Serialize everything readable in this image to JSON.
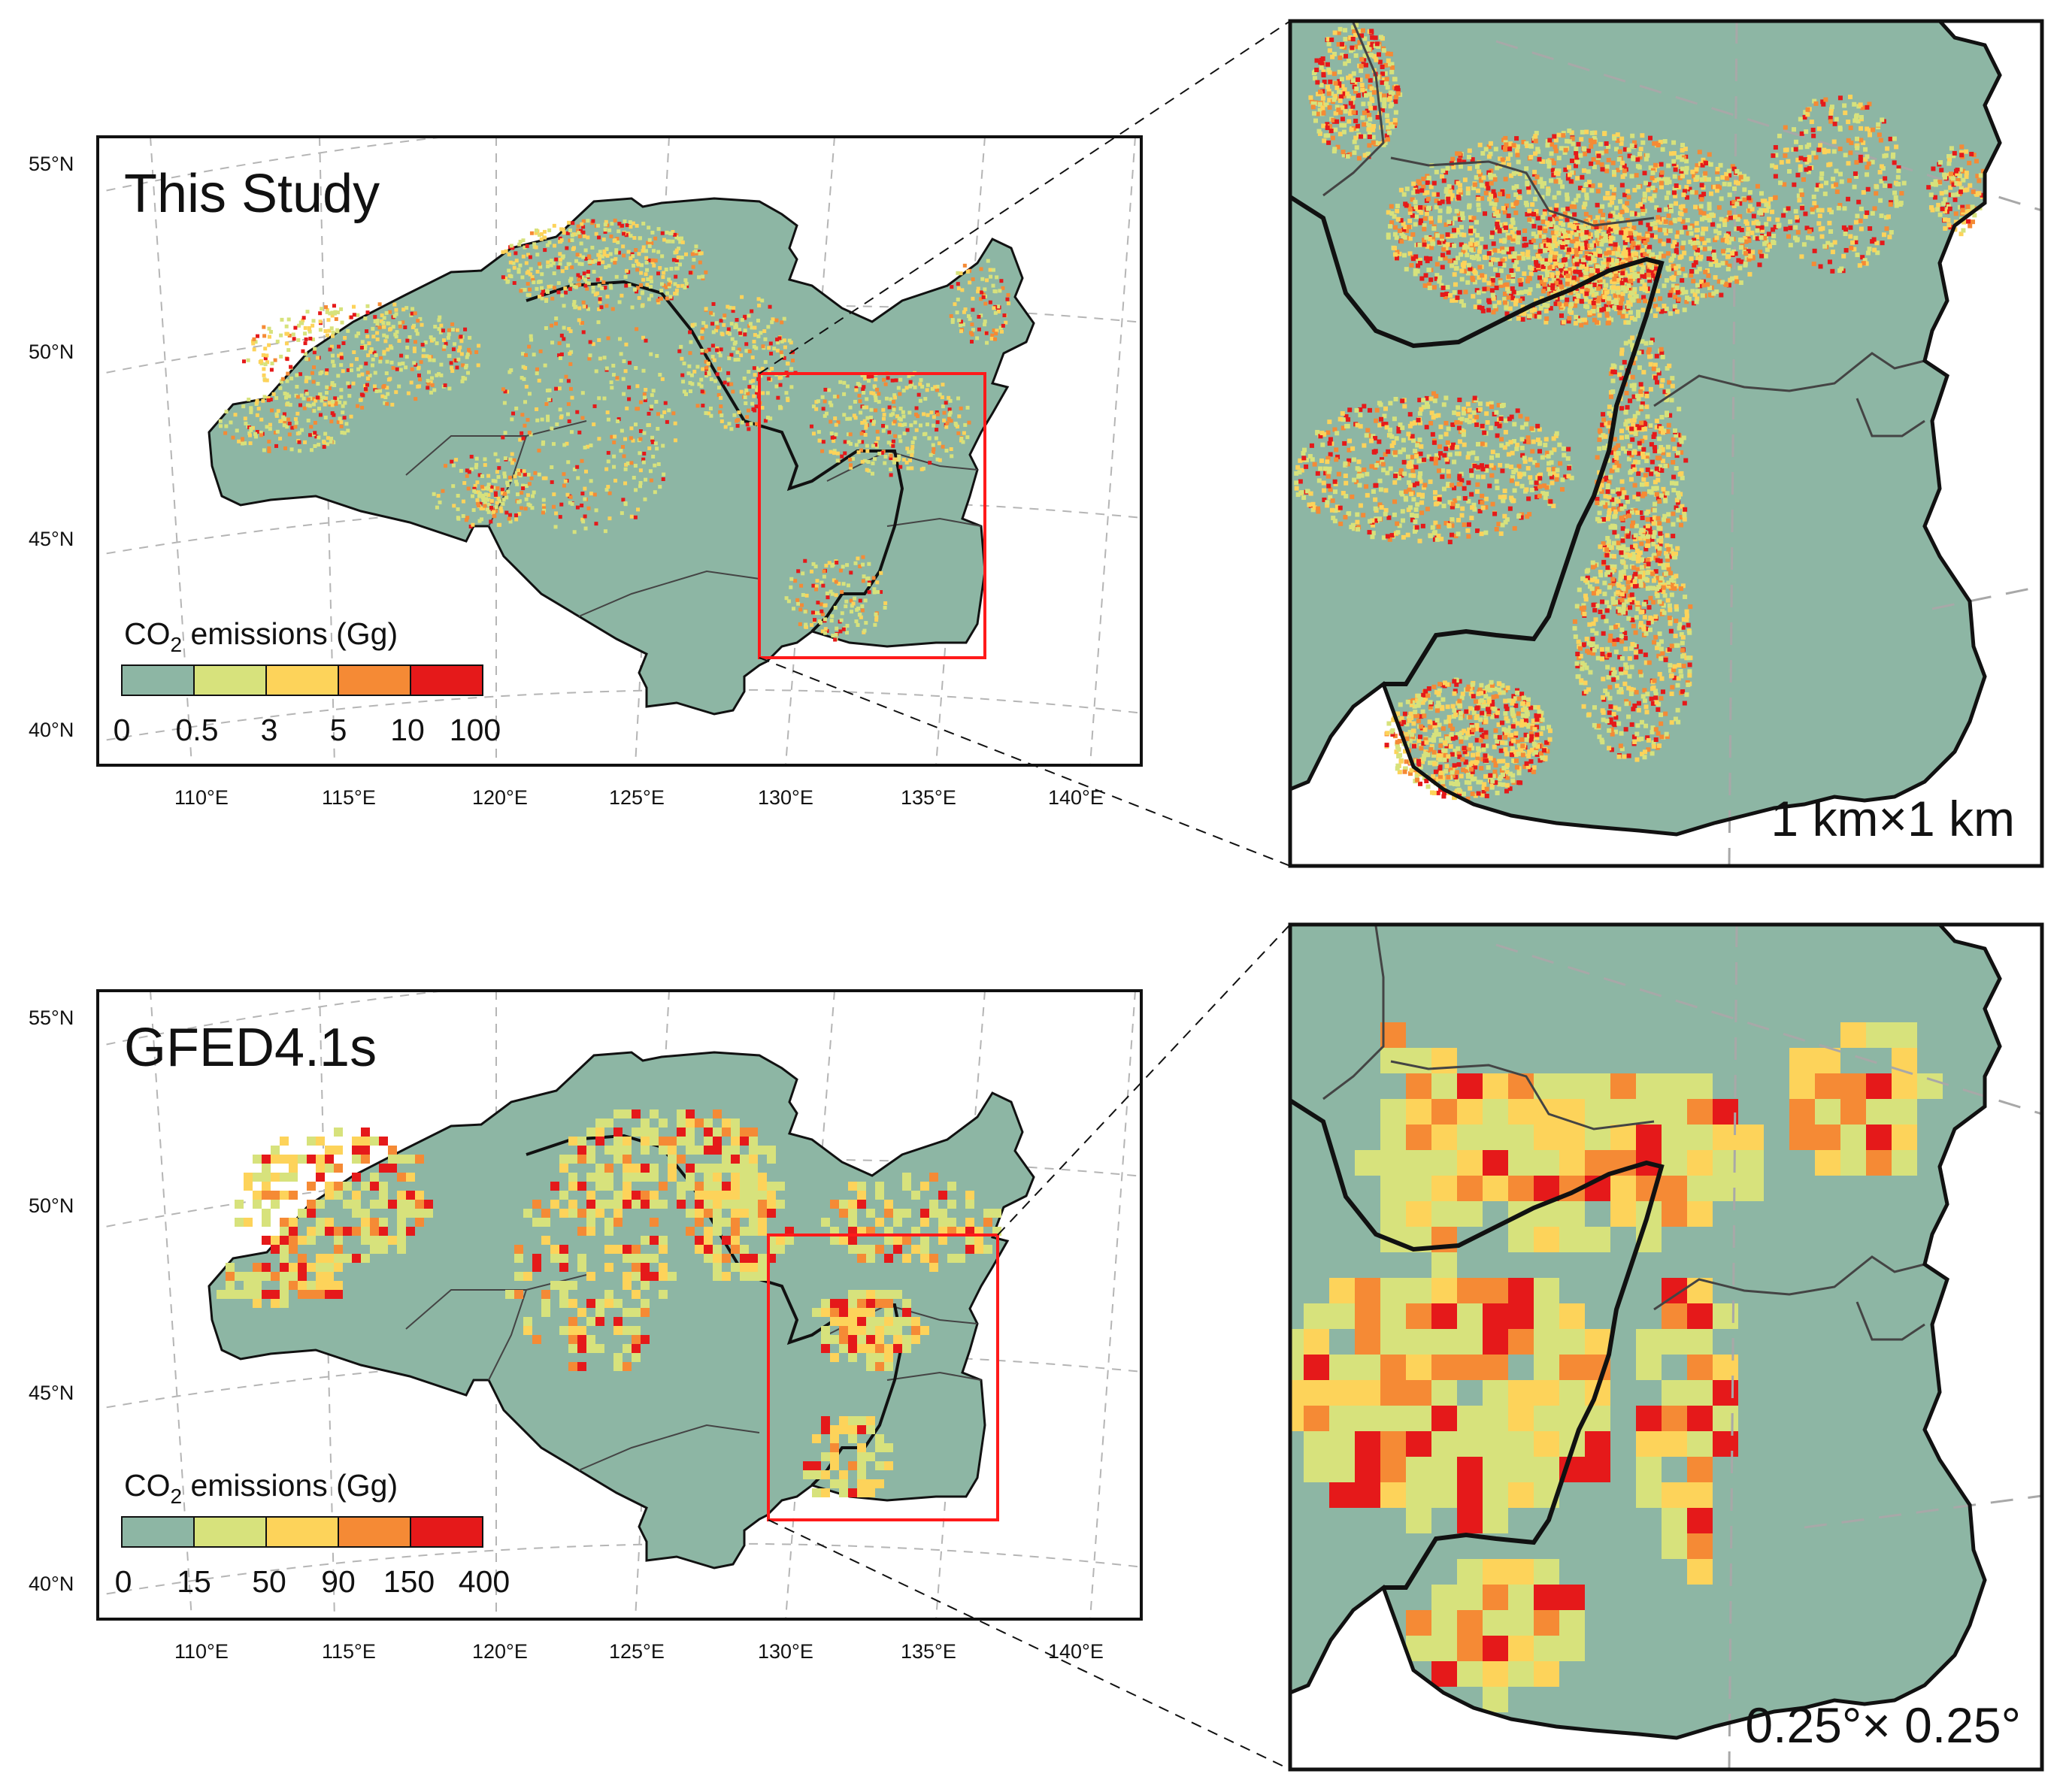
{
  "palette": {
    "background": "#8db6a4",
    "c1": "#d7e27c",
    "c2": "#fdd35a",
    "c3": "#f58a35",
    "c4": "#e5191a",
    "frame": "#111111",
    "box": "#ff1a1a"
  },
  "panels": [
    {
      "id": "this-study",
      "title": "This Study",
      "lat_labels": [
        "55°N",
        "50°N",
        "45°N",
        "40°N"
      ],
      "lon_labels": [
        "110°E",
        "115°E",
        "120°E",
        "125°E",
        "130°E",
        "135°E",
        "140°E"
      ],
      "legend": {
        "title_prefix": "CO",
        "title_sub": "2",
        "title_suffix": " emissions (Gg)",
        "ticks": [
          "0",
          "0.5",
          "3",
          "5",
          "10",
          "100"
        ]
      },
      "inset_resolution": "1 km×1 km"
    },
    {
      "id": "gfed",
      "title": "GFED4.1s",
      "lat_labels": [
        "55°N",
        "50°N",
        "45°N",
        "40°N"
      ],
      "lon_labels": [
        "110°E",
        "115°E",
        "120°E",
        "125°E",
        "130°E",
        "135°E",
        "140°E"
      ],
      "legend": {
        "title_prefix": "CO",
        "title_sub": "2",
        "title_suffix": " emissions (Gg)",
        "ticks": [
          "0",
          "15",
          "50",
          "90",
          "150",
          "400"
        ]
      },
      "inset_resolution": "0.25°× 0.25°"
    }
  ]
}
